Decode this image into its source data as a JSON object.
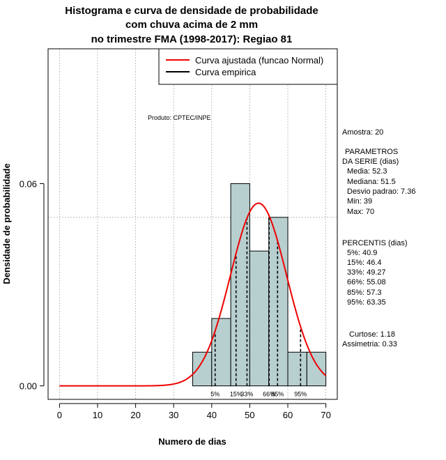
{
  "chart_data": {
    "type": "histogram",
    "title_lines": [
      "Histograma e curva de densidade de probabilidade",
      "com chuva acima de 2 mm",
      "no trimestre FMA (1998-2017): Regiao 81"
    ],
    "xlabel": "Numero de dias",
    "ylabel": "Densidade de probabilidade",
    "xlim": [
      -3,
      73
    ],
    "ylim": [
      -0.004,
      0.1
    ],
    "x_ticks": [
      0,
      10,
      20,
      30,
      40,
      50,
      60,
      70
    ],
    "x_tick_labels": [
      "0",
      "10",
      "20",
      "30",
      "40",
      "50",
      "60",
      "70"
    ],
    "y_ticks": [
      0.0,
      0.06
    ],
    "y_tick_labels": [
      "0.00",
      "0.06"
    ],
    "grid_x": [
      0,
      10,
      20,
      30,
      40,
      50,
      60,
      70
    ],
    "grid_y": [
      0.05,
      0.1
    ],
    "bars": [
      {
        "x0": 35,
        "x1": 40,
        "density": 0.01
      },
      {
        "x0": 40,
        "x1": 45,
        "density": 0.02
      },
      {
        "x0": 45,
        "x1": 50,
        "density": 0.06
      },
      {
        "x0": 50,
        "x1": 55,
        "density": 0.04
      },
      {
        "x0": 55,
        "x1": 60,
        "density": 0.05
      },
      {
        "x0": 60,
        "x1": 65,
        "density": 0.01
      },
      {
        "x0": 65,
        "x1": 70,
        "density": 0.01
      }
    ],
    "bar_color": "#b8cfcf",
    "normal_fit": {
      "mean": 52.3,
      "sd": 7.36,
      "x_from": 0,
      "x_to": 70,
      "color": "#ee0000"
    },
    "percentiles": [
      {
        "label": "5%",
        "x": 40.9
      },
      {
        "label": "15%",
        "x": 46.4
      },
      {
        "label": "33%",
        "x": 49.27
      },
      {
        "label": "66%",
        "x": 55.08
      },
      {
        "label": "85%",
        "x": 57.3
      },
      {
        "label": "95%",
        "x": 63.35
      }
    ],
    "legend": {
      "position": "top-right",
      "entries": [
        {
          "label": "Curva ajustada (funcao Normal)",
          "color": "#ee0000"
        },
        {
          "label": "Curva empirica",
          "color": "#000000"
        }
      ]
    },
    "product_note": "Produto: CPTEC/INPE"
  },
  "stats": {
    "amostra": "Amostra: 20",
    "parametros_header": "PARAMETROS",
    "parametros_sub": "DA SERIE (dias)",
    "media": "Media: 52.3",
    "mediana": "Mediana: 51.5",
    "desvio": "Desvio padrao: 7.36",
    "min": "Min: 39",
    "max": "Max: 70",
    "percentis_header": "PERCENTIS (dias)",
    "p5": "5%: 40.9",
    "p15": "15%: 46.4",
    "p33": "33%: 49.27",
    "p66": "66%: 55.08",
    "p85": "85%: 57.3",
    "p95": "95%: 63.35",
    "curtose": "Curtose: 1.18",
    "assimetria": "Assimetria: 0.33"
  }
}
